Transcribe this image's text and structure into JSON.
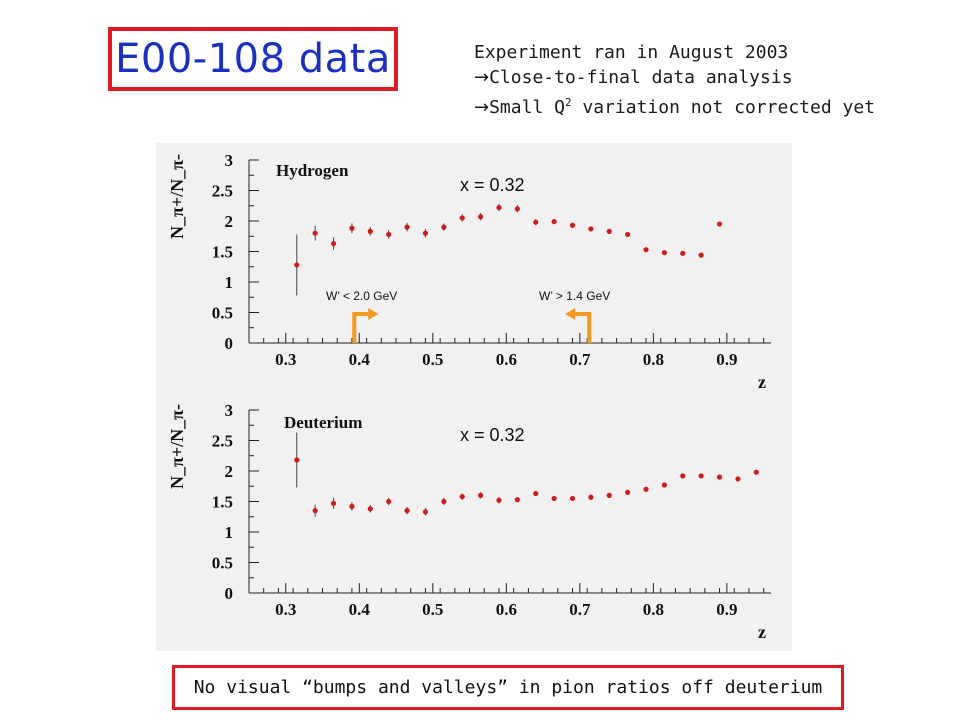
{
  "title": "E00-108 data",
  "notes": {
    "line1": "Experiment ran in August 2003",
    "line2": "Close-to-final data analysis",
    "line3_pre": "Small Q",
    "line3_sup": "2",
    "line3_post": " variation not corrected yet"
  },
  "footer": "No visual “bumps and valleys” in pion ratios off deuterium",
  "colors": {
    "title": "#1a30c0",
    "box": "#e01a22",
    "points": "#d21a1a",
    "arrows": "#f39a1e",
    "panel": "#f1f1f1"
  },
  "chart_data": [
    {
      "type": "scatter",
      "title": "Hydrogen",
      "annotation": "x = 0.32",
      "xlabel": "z",
      "ylabel": "N_π+/N_π-",
      "xlim": [
        0.25,
        0.96
      ],
      "ylim": [
        0,
        3
      ],
      "xticks": [
        "0.3",
        "0.4",
        "0.5",
        "0.6",
        "0.7",
        "0.8",
        "0.9"
      ],
      "yticks": [
        "0",
        "0.5",
        "1",
        "1.5",
        "2",
        "2.5",
        "3"
      ],
      "x": [
        0.315,
        0.34,
        0.365,
        0.39,
        0.415,
        0.44,
        0.465,
        0.49,
        0.515,
        0.54,
        0.565,
        0.59,
        0.615,
        0.64,
        0.665,
        0.69,
        0.715,
        0.74,
        0.765,
        0.79,
        0.815,
        0.84,
        0.865,
        0.89
      ],
      "y": [
        1.28,
        1.8,
        1.63,
        1.88,
        1.83,
        1.78,
        1.9,
        1.8,
        1.9,
        2.05,
        2.07,
        2.22,
        2.2,
        1.98,
        1.99,
        1.93,
        1.87,
        1.83,
        1.78,
        1.53,
        1.48,
        1.47,
        1.44,
        1.95
      ],
      "err": [
        0.5,
        0.12,
        0.1,
        0.08,
        0.07,
        0.07,
        0.07,
        0.07,
        0.06,
        0.06,
        0.06,
        0.06,
        0.06,
        0.05,
        0.04,
        0.04,
        0.04,
        0.04,
        0.03,
        0.03,
        0.03,
        0.03,
        0.03,
        0.03
      ],
      "cut_labels": [
        "W’ < 2.0 GeV",
        "W’ > 1.4 GeV"
      ],
      "cut_z": [
        0.4,
        0.71
      ]
    },
    {
      "type": "scatter",
      "title": "Deuterium",
      "annotation": "x = 0.32",
      "xlabel": "z",
      "ylabel": "N_π+/N_π-",
      "xlim": [
        0.25,
        0.96
      ],
      "ylim": [
        0,
        3
      ],
      "xticks": [
        "0.3",
        "0.4",
        "0.5",
        "0.6",
        "0.7",
        "0.8",
        "0.9"
      ],
      "yticks": [
        "0",
        "0.5",
        "1",
        "1.5",
        "2",
        "2.5",
        "3"
      ],
      "x": [
        0.315,
        0.34,
        0.365,
        0.39,
        0.415,
        0.44,
        0.465,
        0.49,
        0.515,
        0.54,
        0.565,
        0.59,
        0.615,
        0.64,
        0.665,
        0.69,
        0.715,
        0.74,
        0.765,
        0.79,
        0.815,
        0.84,
        0.865,
        0.89,
        0.915,
        0.94
      ],
      "y": [
        2.18,
        1.35,
        1.47,
        1.42,
        1.38,
        1.5,
        1.35,
        1.33,
        1.5,
        1.58,
        1.6,
        1.52,
        1.53,
        1.63,
        1.55,
        1.55,
        1.57,
        1.6,
        1.65,
        1.7,
        1.77,
        1.92,
        1.92,
        1.9,
        1.87,
        1.98
      ],
      "err": [
        0.45,
        0.1,
        0.09,
        0.07,
        0.06,
        0.06,
        0.06,
        0.06,
        0.06,
        0.05,
        0.05,
        0.05,
        0.04,
        0.04,
        0.04,
        0.04,
        0.04,
        0.04,
        0.03,
        0.03,
        0.03,
        0.03,
        0.03,
        0.03,
        0.03,
        0.03
      ]
    }
  ]
}
